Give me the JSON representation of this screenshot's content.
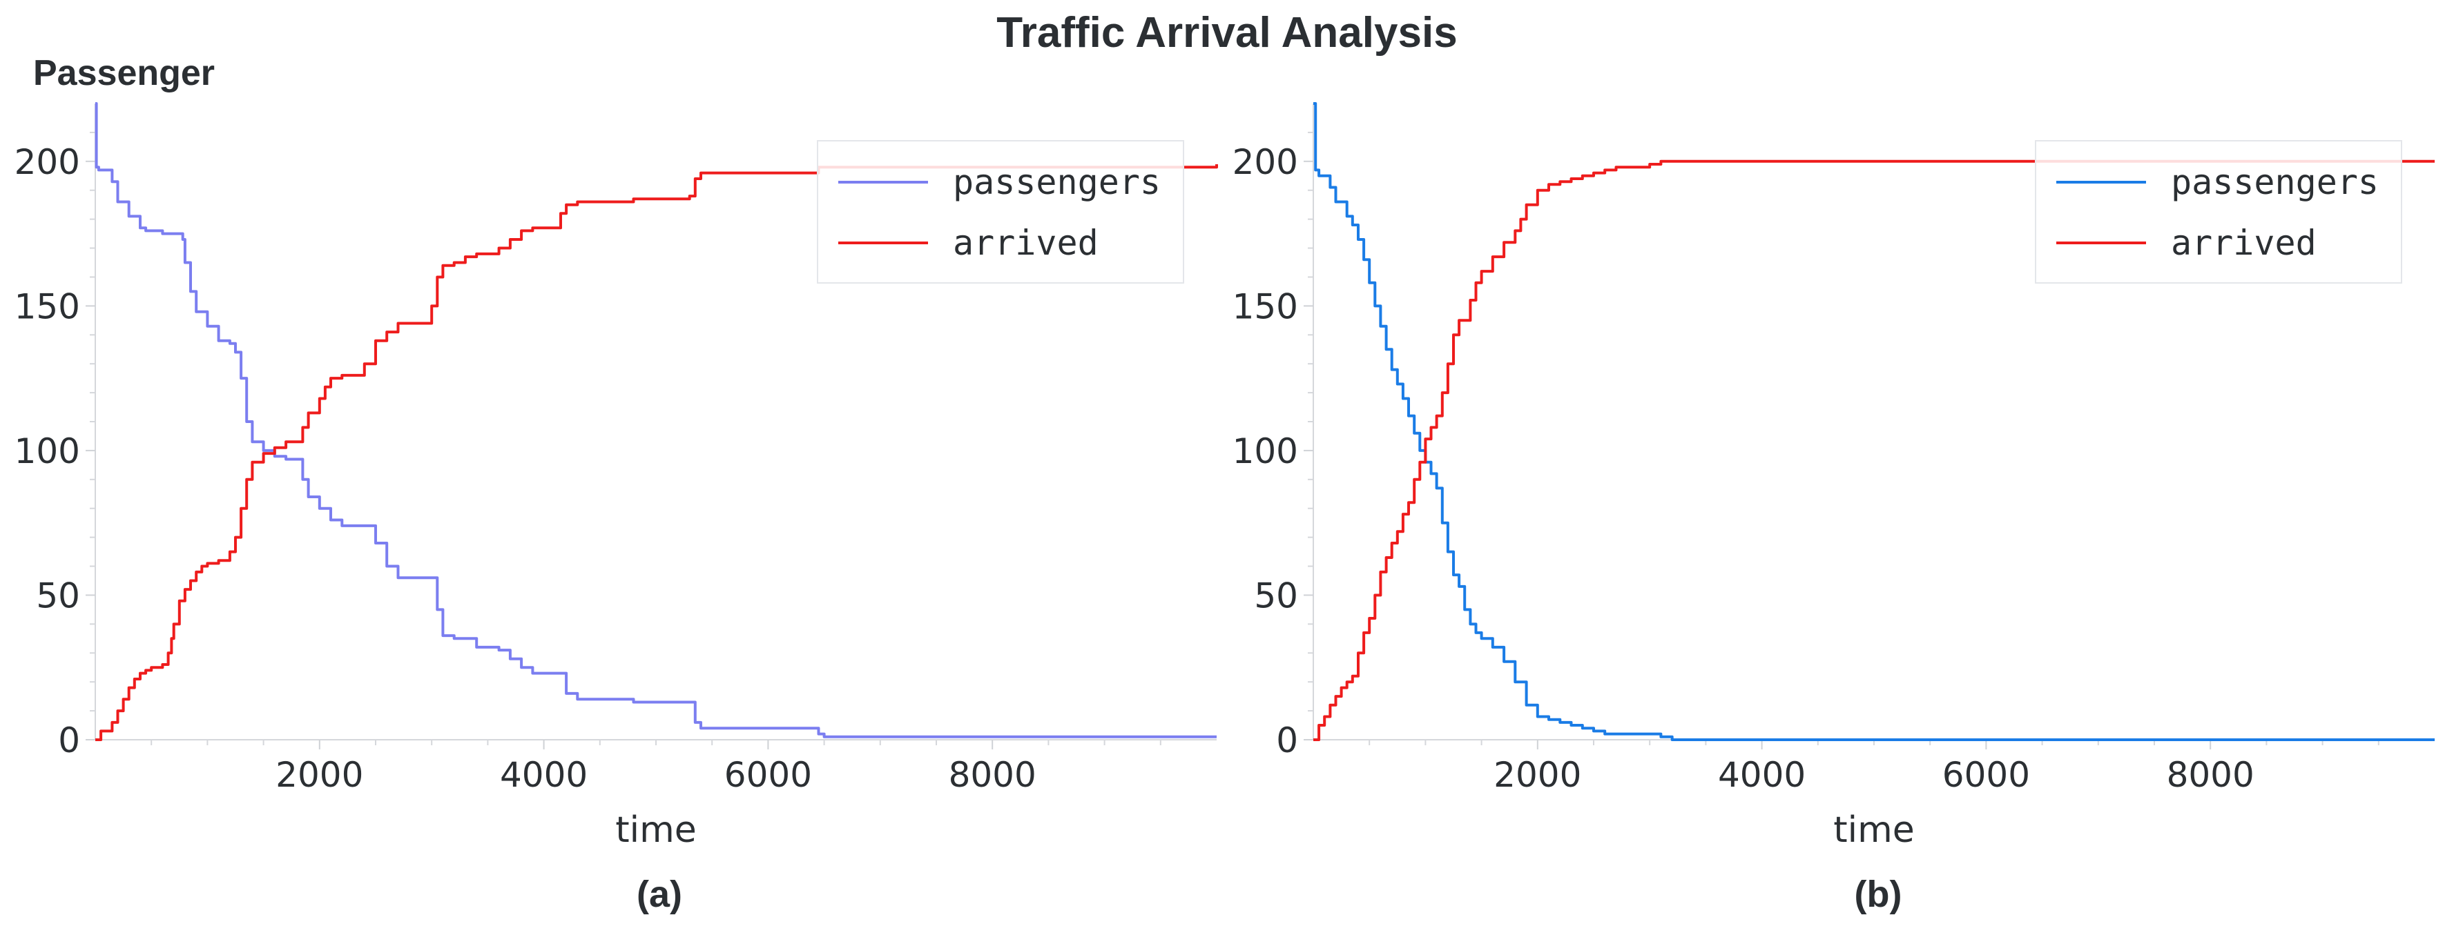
{
  "figure": {
    "title": "Traffic Arrival Analysis",
    "ylabel": "Passenger"
  },
  "chart_data": [
    {
      "type": "line",
      "panel_label": "(a)",
      "xlabel": "time",
      "xlim": [
        0,
        10000
      ],
      "ylim": [
        0,
        220
      ],
      "xticks": [
        2000,
        4000,
        6000,
        8000
      ],
      "yticks": [
        0,
        50,
        100,
        150,
        200
      ],
      "grid": false,
      "legend": "top-right",
      "series": [
        {
          "name": "passengers",
          "color": "#7b7ef0",
          "x": [
            0,
            10,
            30,
            150,
            200,
            300,
            400,
            450,
            600,
            780,
            800,
            850,
            900,
            1000,
            1100,
            1200,
            1250,
            1300,
            1350,
            1400,
            1500,
            1600,
            1700,
            1800,
            1850,
            1900,
            2000,
            2100,
            2200,
            2400,
            2500,
            2600,
            2700,
            3000,
            3050,
            3100,
            3200,
            3400,
            3600,
            3700,
            3800,
            3900,
            4100,
            4200,
            4300,
            4400,
            4800,
            5300,
            5350,
            5400,
            6400,
            6450,
            6500,
            10000
          ],
          "y": [
            220,
            198,
            197,
            193,
            186,
            181,
            177,
            176,
            175,
            173,
            165,
            155,
            148,
            143,
            138,
            137,
            134,
            125,
            110,
            103,
            100,
            98,
            97,
            97,
            90,
            84,
            80,
            76,
            74,
            74,
            68,
            60,
            56,
            56,
            45,
            36,
            35,
            32,
            31,
            28,
            25,
            23,
            23,
            16,
            14,
            14,
            13,
            13,
            6,
            4,
            4,
            2,
            1,
            1
          ]
        },
        {
          "name": "arrived",
          "color": "#ee1c1c",
          "x": [
            0,
            50,
            150,
            200,
            250,
            300,
            350,
            400,
            450,
            500,
            550,
            600,
            650,
            680,
            700,
            750,
            800,
            850,
            900,
            950,
            1000,
            1100,
            1200,
            1250,
            1300,
            1350,
            1400,
            1500,
            1600,
            1700,
            1800,
            1850,
            1900,
            2000,
            2050,
            2100,
            2200,
            2300,
            2400,
            2500,
            2600,
            2700,
            2800,
            2900,
            3000,
            3050,
            3100,
            3200,
            3300,
            3400,
            3600,
            3700,
            3800,
            3900,
            4100,
            4150,
            4200,
            4300,
            4800,
            5300,
            5350,
            5400,
            6400,
            6450,
            10000
          ],
          "y": [
            0,
            3,
            6,
            10,
            14,
            18,
            21,
            23,
            24,
            25,
            25,
            26,
            30,
            35,
            40,
            48,
            52,
            55,
            58,
            60,
            61,
            62,
            65,
            70,
            80,
            90,
            96,
            99,
            101,
            103,
            103,
            108,
            113,
            118,
            122,
            125,
            126,
            126,
            130,
            138,
            141,
            144,
            144,
            144,
            150,
            160,
            164,
            165,
            167,
            168,
            170,
            173,
            176,
            177,
            177,
            182,
            185,
            186,
            187,
            188,
            194,
            196,
            196,
            198,
            199
          ]
        }
      ]
    },
    {
      "type": "line",
      "panel_label": "(b)",
      "xlabel": "time",
      "xlim": [
        0,
        10000
      ],
      "ylim": [
        0,
        220
      ],
      "xticks": [
        2000,
        4000,
        6000,
        8000
      ],
      "yticks": [
        0,
        50,
        100,
        150,
        200
      ],
      "grid": false,
      "legend": "top-right",
      "series": [
        {
          "name": "passengers",
          "color": "#1a7ce6",
          "x": [
            0,
            20,
            50,
            150,
            200,
            300,
            350,
            400,
            450,
            500,
            550,
            600,
            650,
            700,
            750,
            800,
            850,
            900,
            950,
            1000,
            1050,
            1100,
            1150,
            1200,
            1250,
            1300,
            1350,
            1400,
            1450,
            1500,
            1600,
            1700,
            1800,
            1900,
            2000,
            2100,
            2200,
            2300,
            2400,
            2500,
            2600,
            3100,
            3200,
            10000
          ],
          "y": [
            220,
            197,
            195,
            191,
            186,
            181,
            178,
            173,
            166,
            158,
            150,
            143,
            135,
            128,
            123,
            118,
            112,
            106,
            100,
            96,
            92,
            87,
            75,
            65,
            57,
            53,
            45,
            40,
            37,
            35,
            32,
            27,
            20,
            12,
            8,
            7,
            6,
            5,
            4,
            3,
            2,
            1,
            0,
            0
          ]
        },
        {
          "name": "arrived",
          "color": "#ee1c1c",
          "x": [
            0,
            50,
            100,
            150,
            200,
            250,
            300,
            350,
            400,
            450,
            500,
            550,
            600,
            650,
            700,
            750,
            800,
            850,
            900,
            950,
            1000,
            1050,
            1100,
            1150,
            1200,
            1250,
            1300,
            1400,
            1450,
            1500,
            1600,
            1700,
            1800,
            1850,
            1900,
            2000,
            2100,
            2200,
            2300,
            2400,
            2500,
            2600,
            2700,
            3000,
            3100,
            3200,
            10000
          ],
          "y": [
            0,
            5,
            8,
            12,
            15,
            18,
            20,
            22,
            30,
            37,
            42,
            50,
            58,
            63,
            68,
            72,
            78,
            82,
            90,
            96,
            104,
            108,
            112,
            120,
            130,
            140,
            145,
            152,
            158,
            162,
            167,
            172,
            176,
            180,
            185,
            190,
            192,
            193,
            194,
            195,
            196,
            197,
            198,
            199,
            200,
            200,
            200
          ]
        }
      ]
    }
  ]
}
